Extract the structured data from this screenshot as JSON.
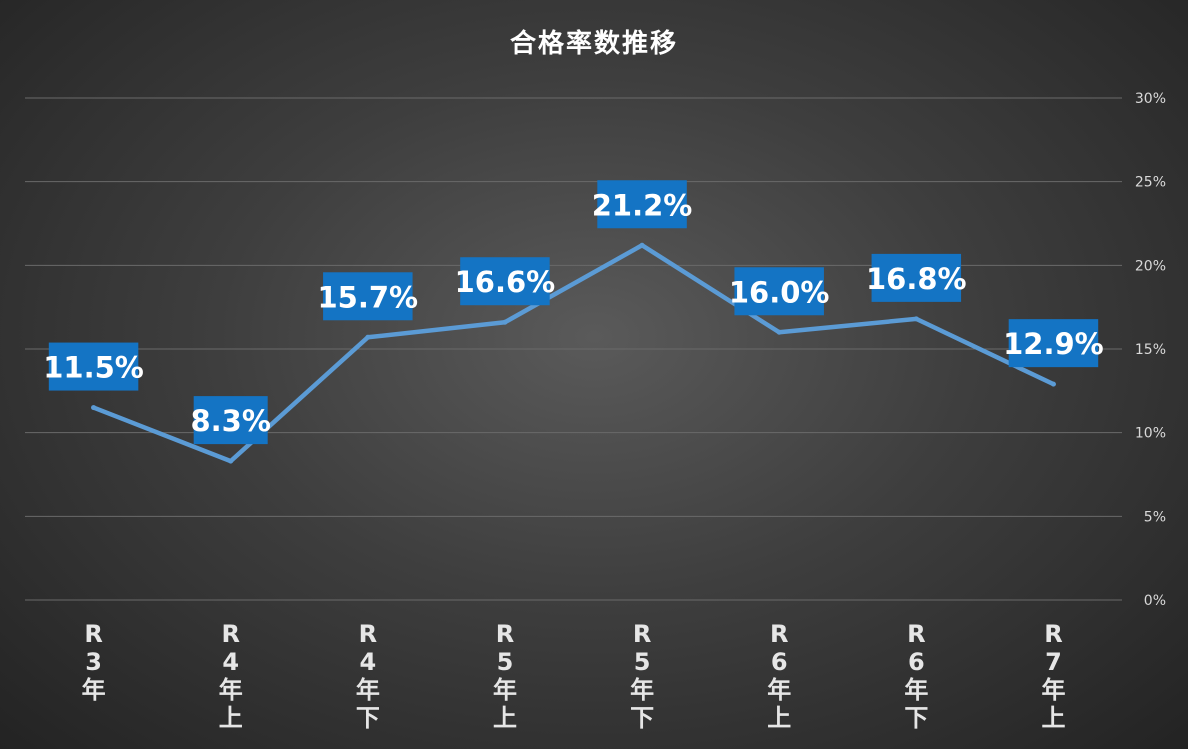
{
  "chart_data": {
    "type": "line",
    "title": "合格率数推移",
    "categories": [
      [
        "R",
        "3",
        "年"
      ],
      [
        "R",
        "4",
        "年",
        "上"
      ],
      [
        "R",
        "4",
        "年",
        "下"
      ],
      [
        "R",
        "5",
        "年",
        "上"
      ],
      [
        "R",
        "5",
        "年",
        "下"
      ],
      [
        "R",
        "6",
        "年",
        "上"
      ],
      [
        "R",
        "6",
        "年",
        "下"
      ],
      [
        "R",
        "7",
        "年",
        "上"
      ]
    ],
    "series": [
      {
        "values": [
          11.5,
          8.3,
          15.7,
          16.6,
          21.2,
          16.0,
          16.8,
          12.9
        ]
      }
    ],
    "data_labels": [
      "11.5%",
      "8.3%",
      "15.7%",
      "16.6%",
      "21.2%",
      "16.0%",
      "16.8%",
      "12.9%"
    ],
    "yticks": [
      "0%",
      "5%",
      "10%",
      "15%",
      "20%",
      "25%",
      "30%"
    ],
    "ylim": [
      0,
      30
    ],
    "y_axis_position": "right",
    "grid": true,
    "legend": "none",
    "colors": {
      "line": "#5b9bd5",
      "label_background": "#1474c4",
      "label_text": "#ffffff"
    }
  }
}
